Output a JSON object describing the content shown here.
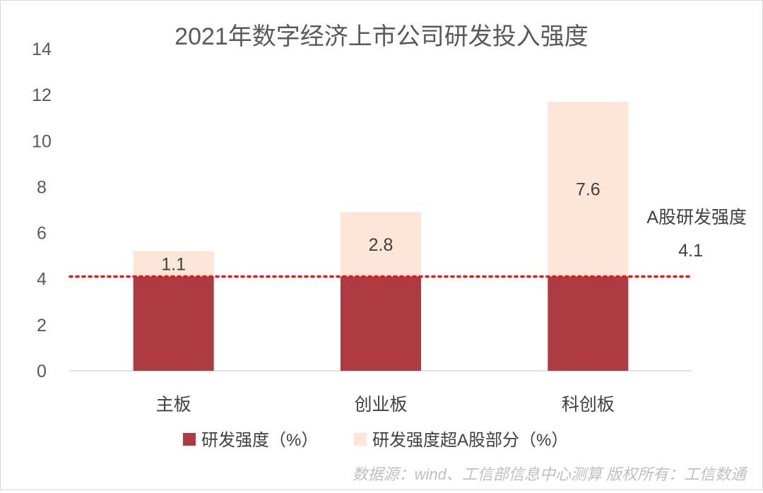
{
  "chart_data": {
    "type": "bar",
    "stacked": true,
    "title": "2021年数字经济上市公司研发投入强度",
    "categories": [
      "主板",
      "创业板",
      "科创板"
    ],
    "series": [
      {
        "name": "研发强度（%）",
        "values": [
          4.1,
          4.1,
          4.1
        ],
        "color": "#ad3b41"
      },
      {
        "name": "研发强度超A股部分（%）",
        "values": [
          1.1,
          2.8,
          7.6
        ],
        "color": "#fde5d8"
      }
    ],
    "data_labels": [
      "1.1",
      "2.8",
      "7.6"
    ],
    "ylim": [
      0,
      14
    ],
    "yticks": [
      0,
      2,
      4,
      6,
      8,
      10,
      12,
      14
    ],
    "reference_line": {
      "value": 4.1,
      "label": "A股研发强度",
      "value_label": "4.1",
      "color": "#e11b1b",
      "style": "dotted"
    },
    "legend_position": "bottom",
    "grid": false
  },
  "source_note": "数据源：wind、工信部信息中心测算   版权所有：工信数通"
}
